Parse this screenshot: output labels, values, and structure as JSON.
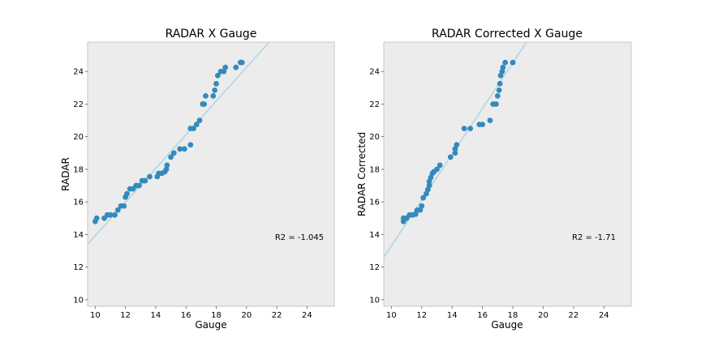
{
  "chart_data": [
    {
      "type": "scatter",
      "title": "RADAR X Gauge",
      "xlabel": "Gauge",
      "ylabel": "RADAR",
      "xlim": [
        9.5,
        25.8
      ],
      "ylim": [
        9.6,
        25.8
      ],
      "xticks": [
        10,
        12,
        14,
        16,
        18,
        20,
        22,
        24
      ],
      "yticks": [
        10,
        12,
        14,
        16,
        18,
        20,
        22,
        24
      ],
      "grid": false,
      "background": "#ececec",
      "point_color": "#348abd",
      "fit_color": "#add8e6",
      "annotation": "R2 = -1.045",
      "fit_line": [
        [
          9.5,
          13.4
        ],
        [
          21.5,
          25.8
        ]
      ],
      "points": [
        [
          10.0,
          14.8
        ],
        [
          10.1,
          15.0
        ],
        [
          10.6,
          15.0
        ],
        [
          10.8,
          15.2
        ],
        [
          11.0,
          15.2
        ],
        [
          11.3,
          15.2
        ],
        [
          11.5,
          15.5
        ],
        [
          11.7,
          15.75
        ],
        [
          11.9,
          15.75
        ],
        [
          12.0,
          16.3
        ],
        [
          12.1,
          16.5
        ],
        [
          12.3,
          16.8
        ],
        [
          12.5,
          16.8
        ],
        [
          12.7,
          17.0
        ],
        [
          12.9,
          17.0
        ],
        [
          13.1,
          17.3
        ],
        [
          13.3,
          17.3
        ],
        [
          13.6,
          17.55
        ],
        [
          14.1,
          17.55
        ],
        [
          14.2,
          17.75
        ],
        [
          14.4,
          17.75
        ],
        [
          14.6,
          17.85
        ],
        [
          14.7,
          18.0
        ],
        [
          14.75,
          18.25
        ],
        [
          15.0,
          18.75
        ],
        [
          15.2,
          19.0
        ],
        [
          15.6,
          19.25
        ],
        [
          15.9,
          19.25
        ],
        [
          16.3,
          19.5
        ],
        [
          16.3,
          20.5
        ],
        [
          16.5,
          20.5
        ],
        [
          16.7,
          20.75
        ],
        [
          16.9,
          21.0
        ],
        [
          17.1,
          22.0
        ],
        [
          17.2,
          22.0
        ],
        [
          17.3,
          22.5
        ],
        [
          17.8,
          22.5
        ],
        [
          17.9,
          22.85
        ],
        [
          18.0,
          23.25
        ],
        [
          18.1,
          23.75
        ],
        [
          18.3,
          24.0
        ],
        [
          18.5,
          24.0
        ],
        [
          18.6,
          24.25
        ],
        [
          19.3,
          24.25
        ],
        [
          19.6,
          24.55
        ],
        [
          19.7,
          24.55
        ]
      ]
    },
    {
      "type": "scatter",
      "title": "RADAR Corrected X Gauge",
      "xlabel": "Gauge",
      "ylabel": "RADAR Corrected",
      "xlim": [
        9.5,
        25.8
      ],
      "ylim": [
        9.6,
        25.8
      ],
      "xticks": [
        10,
        12,
        14,
        16,
        18,
        20,
        22,
        24
      ],
      "yticks": [
        10,
        12,
        14,
        16,
        18,
        20,
        22,
        24
      ],
      "grid": false,
      "background": "#ececec",
      "point_color": "#348abd",
      "fit_color": "#add8e6",
      "annotation": "R2 = -1.71",
      "fit_line": [
        [
          9.5,
          12.6
        ],
        [
          18.9,
          25.8
        ]
      ],
      "points": [
        [
          10.8,
          14.8
        ],
        [
          10.8,
          15.0
        ],
        [
          11.0,
          15.0
        ],
        [
          11.2,
          15.2
        ],
        [
          11.4,
          15.2
        ],
        [
          11.6,
          15.25
        ],
        [
          11.7,
          15.5
        ],
        [
          11.9,
          15.5
        ],
        [
          12.0,
          15.75
        ],
        [
          12.1,
          16.25
        ],
        [
          12.3,
          16.5
        ],
        [
          12.4,
          16.75
        ],
        [
          12.5,
          17.0
        ],
        [
          12.5,
          17.25
        ],
        [
          12.6,
          17.5
        ],
        [
          12.7,
          17.75
        ],
        [
          12.8,
          17.85
        ],
        [
          13.0,
          18.0
        ],
        [
          13.2,
          18.25
        ],
        [
          13.9,
          18.75
        ],
        [
          14.2,
          19.0
        ],
        [
          14.2,
          19.25
        ],
        [
          14.3,
          19.5
        ],
        [
          14.8,
          20.5
        ],
        [
          15.2,
          20.5
        ],
        [
          15.8,
          20.75
        ],
        [
          16.0,
          20.75
        ],
        [
          16.5,
          21.0
        ],
        [
          16.7,
          22.0
        ],
        [
          16.9,
          22.0
        ],
        [
          17.0,
          22.5
        ],
        [
          17.1,
          22.85
        ],
        [
          17.15,
          23.25
        ],
        [
          17.2,
          23.75
        ],
        [
          17.3,
          24.0
        ],
        [
          17.35,
          24.25
        ],
        [
          17.5,
          24.55
        ],
        [
          18.0,
          24.55
        ]
      ]
    }
  ]
}
